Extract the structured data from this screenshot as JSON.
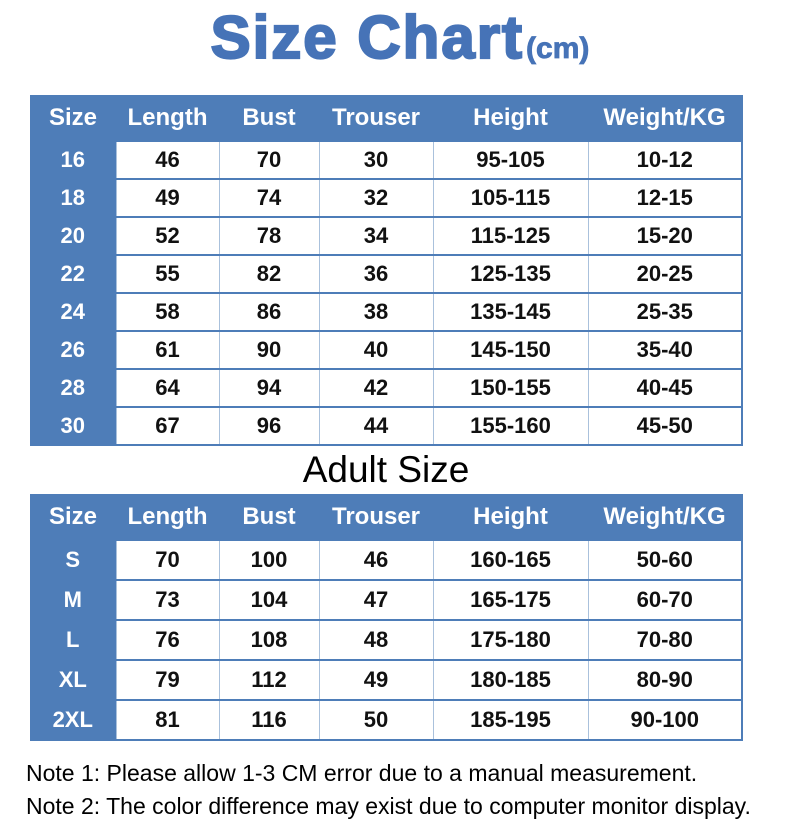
{
  "accent_colors": {
    "table_blue": "#4e7db8",
    "title_blue": "#4673b7",
    "grid_light_blue": "#aac1dc",
    "cell_text": "#111111"
  },
  "title": {
    "text": "Size Chart",
    "unit": "(cm)"
  },
  "adult_section_heading": "Adult Size",
  "notes": [
    "Note 1: Please allow 1-3 CM error due to a manual measurement.",
    "Note 2: The color difference may exist due to computer monitor display."
  ],
  "chart_data": [
    {
      "type": "table",
      "name": "child-size-table",
      "title": "Size Chart(cm)",
      "columns": [
        "Size",
        "Length",
        "Bust",
        "Trouser",
        "Height",
        "Weight/KG"
      ],
      "rows": [
        [
          "16",
          "46",
          "70",
          "30",
          "95-105",
          "10-12"
        ],
        [
          "18",
          "49",
          "74",
          "32",
          "105-115",
          "12-15"
        ],
        [
          "20",
          "52",
          "78",
          "34",
          "115-125",
          "15-20"
        ],
        [
          "22",
          "55",
          "82",
          "36",
          "125-135",
          "20-25"
        ],
        [
          "24",
          "58",
          "86",
          "38",
          "135-145",
          "25-35"
        ],
        [
          "26",
          "61",
          "90",
          "40",
          "145-150",
          "35-40"
        ],
        [
          "28",
          "64",
          "94",
          "42",
          "150-155",
          "40-45"
        ],
        [
          "30",
          "67",
          "96",
          "44",
          "155-160",
          "45-50"
        ]
      ]
    },
    {
      "type": "table",
      "name": "adult-size-table",
      "title": "Adult Size",
      "columns": [
        "Size",
        "Length",
        "Bust",
        "Trouser",
        "Height",
        "Weight/KG"
      ],
      "rows": [
        [
          "S",
          "70",
          "100",
          "46",
          "160-165",
          "50-60"
        ],
        [
          "M",
          "73",
          "104",
          "47",
          "165-175",
          "60-70"
        ],
        [
          "L",
          "76",
          "108",
          "48",
          "175-180",
          "70-80"
        ],
        [
          "XL",
          "79",
          "112",
          "49",
          "180-185",
          "80-90"
        ],
        [
          "2XL",
          "81",
          "116",
          "50",
          "185-195",
          "90-100"
        ]
      ]
    }
  ]
}
